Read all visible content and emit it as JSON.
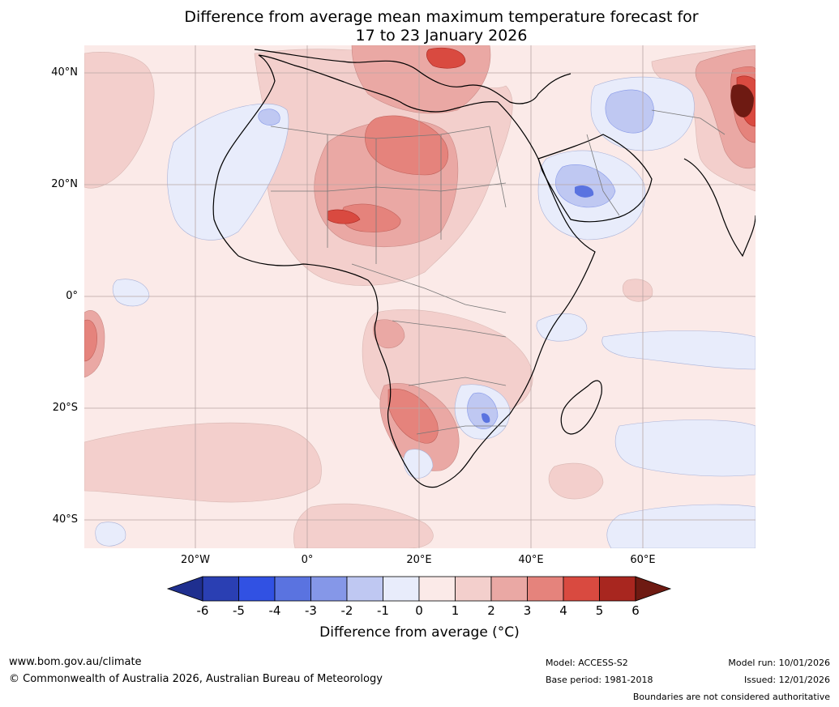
{
  "title": {
    "line1": "Difference from average mean maximum temperature forecast for",
    "line2": "17 to 23 January 2026"
  },
  "axes": {
    "lat_labels": [
      "40°N",
      "20°N",
      "0°",
      "20°S",
      "40°S"
    ],
    "lon_labels": [
      "20°W",
      "0°",
      "20°E",
      "40°E",
      "60°E"
    ]
  },
  "colorbar": {
    "ticks": [
      "-6",
      "-5",
      "-4",
      "-3",
      "-2",
      "-1",
      "0",
      "1",
      "2",
      "3",
      "4",
      "5",
      "6"
    ],
    "colors": [
      "#1f2f8f",
      "#2a3fb3",
      "#3151e3",
      "#5a73e0",
      "#8597e8",
      "#bfc8f2",
      "#e8ecfb",
      "#fbeae8",
      "#f3cfcc",
      "#eaa8a4",
      "#e5837c",
      "#d94a40",
      "#a8261f",
      "#6e1a12"
    ],
    "title": "Difference from average (°C)"
  },
  "footer": {
    "website": "www.bom.gov.au/climate",
    "copyright": "© Commonwealth of Australia 2026, Australian Bureau of Meteorology",
    "model": "Model: ACCESS-S2",
    "base_period": "Base period: 1981-2018",
    "model_run": "Model run: 10/01/2026",
    "issued": "Issued: 12/01/2026",
    "disclaimer": "Boundaries are not considered authoritative"
  },
  "map": {
    "region": "Africa",
    "background_color": "#fbeae8"
  }
}
